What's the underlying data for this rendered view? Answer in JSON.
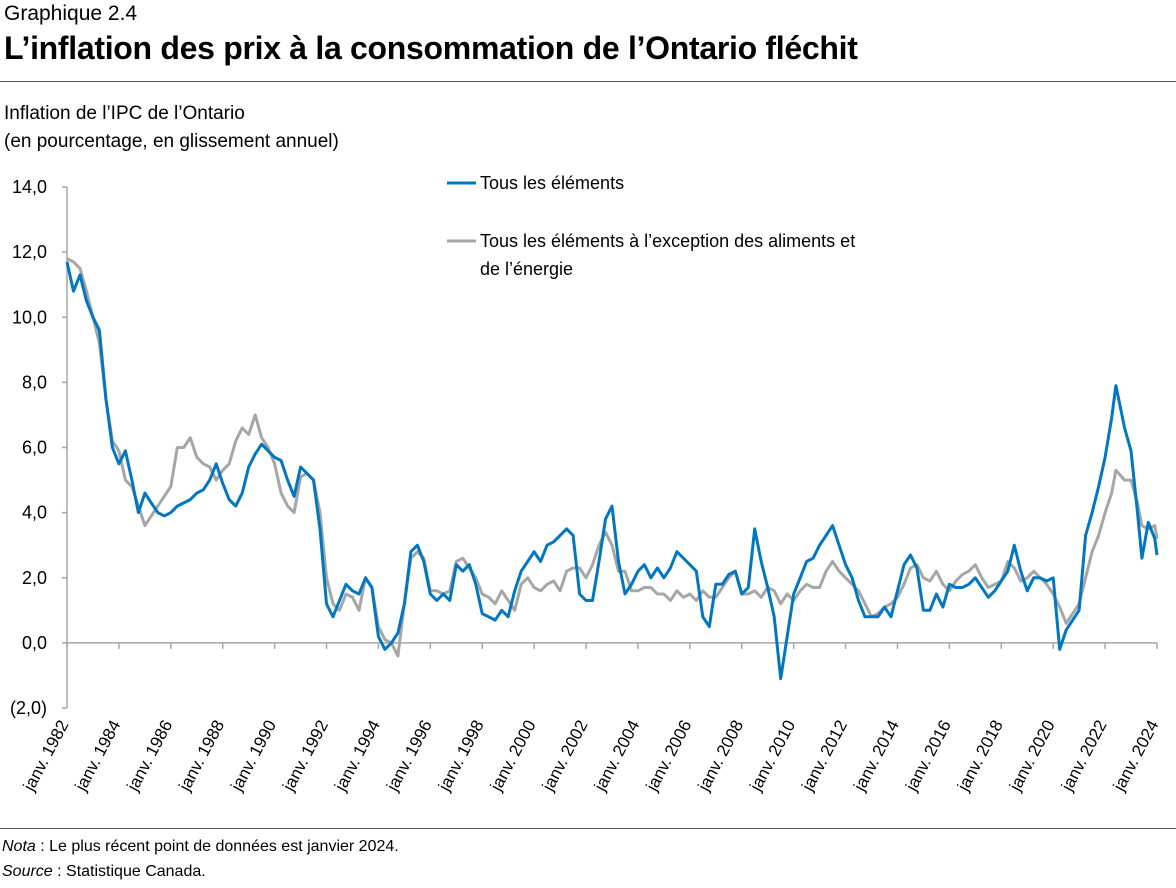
{
  "header": {
    "kicker": "Graphique 2.4",
    "title": "L’inflation des prix à la consommation de l’Ontario fléchit"
  },
  "chart_data": {
    "type": "line",
    "title": "L’inflation des prix à la consommation de l’Ontario fléchit",
    "ylabel_lines": [
      "Inflation de l’IPC de l’Ontario",
      "(en pourcentage, en glissement annuel)"
    ],
    "ylim": [
      -2,
      14
    ],
    "yticks": [
      14,
      12,
      10,
      8,
      6,
      4,
      2,
      0,
      -2
    ],
    "ytick_labels": [
      "14,0",
      "12,0",
      "10,0",
      "8,0",
      "6,0",
      "4,0",
      "2,0",
      "0,0",
      "(2,0)"
    ],
    "xlim": [
      "1982-01",
      "2024-01"
    ],
    "xtick_labels": [
      "janv. 1982",
      "janv. 1984",
      "janv. 1986",
      "janv. 1988",
      "janv. 1990",
      "janv. 1992",
      "janv. 1994",
      "janv. 1996",
      "janv. 1998",
      "janv. 2000",
      "janv. 2002",
      "janv. 2004",
      "janv. 2006",
      "janv. 2008",
      "janv. 2010",
      "janv. 2012",
      "janv. 2014",
      "janv. 2016",
      "janv. 2018",
      "janv. 2020",
      "janv. 2022",
      "janv. 2024"
    ],
    "grid": false,
    "legend_position": "top-center",
    "x": [
      "1982-01",
      "1982-04",
      "1982-07",
      "1982-10",
      "1983-01",
      "1983-04",
      "1983-07",
      "1983-10",
      "1984-01",
      "1984-04",
      "1984-07",
      "1984-10",
      "1985-01",
      "1985-04",
      "1985-07",
      "1985-10",
      "1986-01",
      "1986-04",
      "1986-07",
      "1986-10",
      "1987-01",
      "1987-04",
      "1987-07",
      "1987-10",
      "1988-01",
      "1988-04",
      "1988-07",
      "1988-10",
      "1989-01",
      "1989-04",
      "1989-07",
      "1989-10",
      "1990-01",
      "1990-04",
      "1990-07",
      "1990-10",
      "1991-01",
      "1991-04",
      "1991-07",
      "1991-10",
      "1992-01",
      "1992-04",
      "1992-07",
      "1992-10",
      "1993-01",
      "1993-04",
      "1993-07",
      "1993-10",
      "1994-01",
      "1994-04",
      "1994-07",
      "1994-10",
      "1995-01",
      "1995-04",
      "1995-07",
      "1995-10",
      "1996-01",
      "1996-04",
      "1996-07",
      "1996-10",
      "1997-01",
      "1997-04",
      "1997-07",
      "1997-10",
      "1998-01",
      "1998-04",
      "1998-07",
      "1998-10",
      "1999-01",
      "1999-04",
      "1999-07",
      "1999-10",
      "2000-01",
      "2000-04",
      "2000-07",
      "2000-10",
      "2001-01",
      "2001-04",
      "2001-07",
      "2001-10",
      "2002-01",
      "2002-04",
      "2002-07",
      "2002-10",
      "2003-01",
      "2003-04",
      "2003-07",
      "2003-10",
      "2004-01",
      "2004-04",
      "2004-07",
      "2004-10",
      "2005-01",
      "2005-04",
      "2005-07",
      "2005-10",
      "2006-01",
      "2006-04",
      "2006-07",
      "2006-10",
      "2007-01",
      "2007-04",
      "2007-07",
      "2007-10",
      "2008-01",
      "2008-04",
      "2008-07",
      "2008-10",
      "2009-01",
      "2009-04",
      "2009-07",
      "2009-10",
      "2010-01",
      "2010-04",
      "2010-07",
      "2010-10",
      "2011-01",
      "2011-04",
      "2011-07",
      "2011-10",
      "2012-01",
      "2012-04",
      "2012-07",
      "2012-10",
      "2013-01",
      "2013-04",
      "2013-07",
      "2013-10",
      "2014-01",
      "2014-04",
      "2014-07",
      "2014-10",
      "2015-01",
      "2015-04",
      "2015-07",
      "2015-10",
      "2016-01",
      "2016-04",
      "2016-07",
      "2016-10",
      "2017-01",
      "2017-04",
      "2017-07",
      "2017-10",
      "2018-01",
      "2018-04",
      "2018-07",
      "2018-10",
      "2019-01",
      "2019-04",
      "2019-07",
      "2019-10",
      "2020-01",
      "2020-04",
      "2020-07",
      "2020-10",
      "2021-01",
      "2021-04",
      "2021-07",
      "2021-10",
      "2022-01",
      "2022-04",
      "2022-06",
      "2022-10",
      "2023-01",
      "2023-04",
      "2023-06",
      "2023-09",
      "2023-12",
      "2024-01"
    ],
    "series": [
      {
        "name": "Tous les éléments",
        "color": "#0077c0",
        "values": [
          11.7,
          10.8,
          11.3,
          10.5,
          10.0,
          9.6,
          7.5,
          6.0,
          5.5,
          5.9,
          5.0,
          4.0,
          4.6,
          4.3,
          4.0,
          3.9,
          4.0,
          4.2,
          4.3,
          4.4,
          4.6,
          4.7,
          5.0,
          5.5,
          4.9,
          4.4,
          4.2,
          4.6,
          5.4,
          5.8,
          6.1,
          5.9,
          5.7,
          5.6,
          5.0,
          4.5,
          5.4,
          5.2,
          5.0,
          3.5,
          1.2,
          0.8,
          1.3,
          1.8,
          1.6,
          1.5,
          2.0,
          1.7,
          0.2,
          -0.2,
          0.0,
          0.3,
          1.2,
          2.8,
          3.0,
          2.5,
          1.5,
          1.3,
          1.5,
          1.3,
          2.4,
          2.2,
          2.4,
          1.8,
          0.9,
          0.8,
          0.7,
          1.0,
          0.8,
          1.6,
          2.2,
          2.5,
          2.8,
          2.5,
          3.0,
          3.1,
          3.3,
          3.5,
          3.3,
          1.5,
          1.3,
          1.3,
          2.5,
          3.8,
          4.2,
          2.5,
          1.5,
          1.8,
          2.2,
          2.4,
          2.0,
          2.3,
          2.0,
          2.3,
          2.8,
          2.6,
          2.4,
          2.2,
          0.8,
          0.5,
          1.8,
          1.8,
          2.1,
          2.2,
          1.5,
          1.7,
          3.5,
          2.5,
          1.7,
          0.8,
          -1.1,
          0.2,
          1.5,
          2.0,
          2.5,
          2.6,
          3.0,
          3.3,
          3.6,
          3.0,
          2.4,
          2.0,
          1.3,
          0.8,
          0.8,
          0.8,
          1.1,
          0.8,
          1.6,
          2.4,
          2.7,
          2.3,
          1.0,
          1.0,
          1.5,
          1.1,
          1.8,
          1.7,
          1.7,
          1.8,
          2.0,
          1.7,
          1.4,
          1.6,
          1.9,
          2.2,
          3.0,
          2.2,
          1.6,
          2.0,
          2.0,
          1.9,
          2.0,
          -0.2,
          0.4,
          0.7,
          1.0,
          3.3,
          4.0,
          4.8,
          5.7,
          6.9,
          7.9,
          6.6,
          5.9,
          4.0,
          2.6,
          3.7,
          3.2,
          2.7
        ]
      },
      {
        "name": "Tous les éléments à l’exception des aliments et de l’énergie",
        "color": "#a6a6a6",
        "values": [
          11.8,
          11.7,
          11.5,
          10.8,
          10.0,
          9.2,
          7.5,
          6.2,
          5.9,
          5.0,
          4.8,
          4.2,
          3.6,
          3.9,
          4.2,
          4.5,
          4.8,
          6.0,
          6.0,
          6.3,
          5.7,
          5.5,
          5.4,
          5.0,
          5.3,
          5.5,
          6.2,
          6.6,
          6.4,
          7.0,
          6.3,
          6.0,
          5.5,
          4.6,
          4.2,
          4.0,
          5.1,
          5.2,
          5.0,
          4.0,
          2.0,
          1.2,
          1.0,
          1.5,
          1.4,
          1.0,
          2.0,
          1.7,
          0.5,
          0.1,
          0.0,
          -0.4,
          1.2,
          2.6,
          2.8,
          2.6,
          1.6,
          1.6,
          1.5,
          1.6,
          2.5,
          2.6,
          2.3,
          2.0,
          1.5,
          1.4,
          1.2,
          1.6,
          1.3,
          1.0,
          1.8,
          2.0,
          1.7,
          1.6,
          1.8,
          1.9,
          1.6,
          2.2,
          2.3,
          2.3,
          2.0,
          2.4,
          3.0,
          3.4,
          3.0,
          2.2,
          2.2,
          1.6,
          1.6,
          1.7,
          1.7,
          1.5,
          1.5,
          1.3,
          1.6,
          1.4,
          1.5,
          1.3,
          1.6,
          1.4,
          1.4,
          1.7,
          2.0,
          2.2,
          1.5,
          1.5,
          1.6,
          1.4,
          1.7,
          1.6,
          1.2,
          1.5,
          1.3,
          1.6,
          1.8,
          1.7,
          1.7,
          2.2,
          2.5,
          2.2,
          2.0,
          1.8,
          1.6,
          1.2,
          0.8,
          0.9,
          1.1,
          1.2,
          1.4,
          1.8,
          2.3,
          2.4,
          2.0,
          1.9,
          2.2,
          1.8,
          1.6,
          1.9,
          2.1,
          2.2,
          2.4,
          2.0,
          1.7,
          1.8,
          1.9,
          2.5,
          2.3,
          1.9,
          2.0,
          2.2,
          2.0,
          1.8,
          1.5,
          1.1,
          0.6,
          0.9,
          1.2,
          2.0,
          2.8,
          3.3,
          4.0,
          4.6,
          5.3,
          5.0,
          5.0,
          4.3,
          3.6,
          3.5,
          3.6,
          3.2
        ]
      }
    ],
    "legend_lines": [
      [
        "Tous les éléments"
      ],
      [
        "Tous les éléments à l’exception des aliments et",
        "de l’énergie"
      ]
    ]
  },
  "notes": {
    "nota_label": "Nota",
    "nota_text": " : Le plus récent point de données est janvier 2024.",
    "source_label": "Source",
    "source_text": " : Statistique Canada."
  }
}
